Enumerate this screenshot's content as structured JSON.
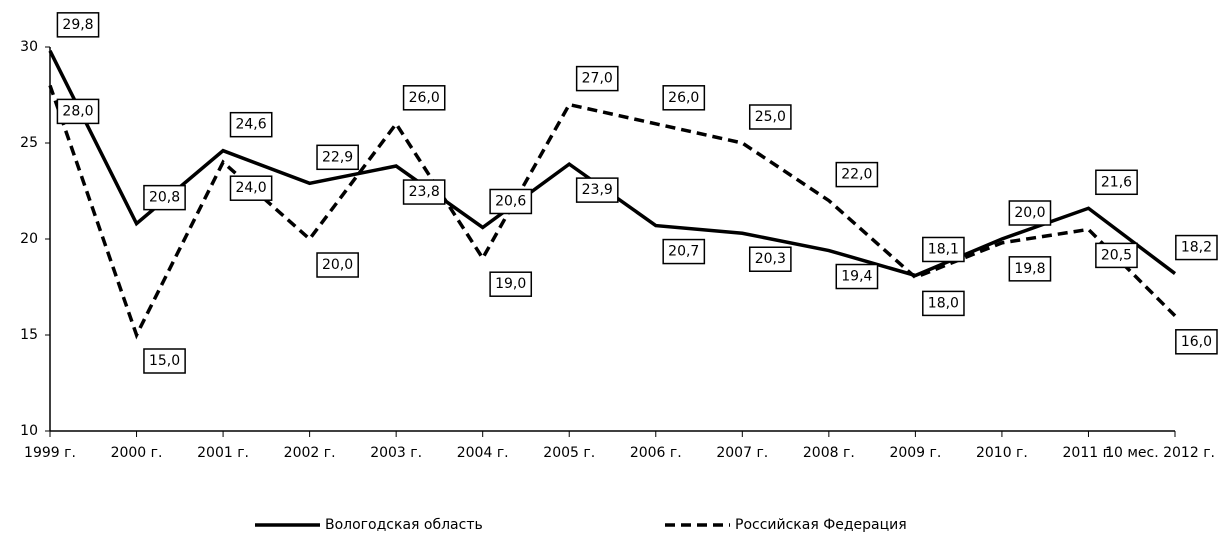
{
  "chart_data": {
    "type": "line",
    "categories": [
      "1999 г.",
      "2000 г.",
      "2001 г.",
      "2002 г.",
      "2003 г.",
      "2004 г.",
      "2005 г.",
      "2006 г.",
      "2007 г.",
      "2008 г.",
      "2009 г.",
      "2010 г.",
      "2011 г.",
      "10 мес. 2012 г."
    ],
    "series": [
      {
        "name": "Вологодская область",
        "color": "#000000",
        "dash": false,
        "values": [
          29.8,
          20.8,
          24.6,
          22.9,
          23.8,
          20.6,
          23.9,
          20.7,
          20.3,
          19.4,
          18.1,
          20.0,
          21.6,
          18.2
        ],
        "value_labels": [
          "29,8",
          "20,8",
          "24,6",
          "22,9",
          "23,8",
          "20,6",
          "23,9",
          "20,7",
          "20,3",
          "19,4",
          "18,1",
          "20,0",
          "21,6",
          "18,2"
        ]
      },
      {
        "name": "Российская Федерация",
        "color": "#000000",
        "dash": true,
        "values": [
          28.0,
          15.0,
          24.0,
          20.0,
          26.0,
          19.0,
          27.0,
          26.0,
          25.0,
          22.0,
          18.0,
          19.8,
          20.5,
          16.0
        ],
        "value_labels": [
          "28,0",
          "15,0",
          "24,0",
          "20,0",
          "26,0",
          "19,0",
          "27,0",
          "26,0",
          "25,0",
          "22,0",
          "18,0",
          "19,8",
          "20,5",
          "16,0"
        ]
      }
    ],
    "ylim": [
      10,
      30
    ],
    "yticks": [
      10,
      15,
      20,
      25,
      30
    ],
    "legend": "bottom"
  }
}
